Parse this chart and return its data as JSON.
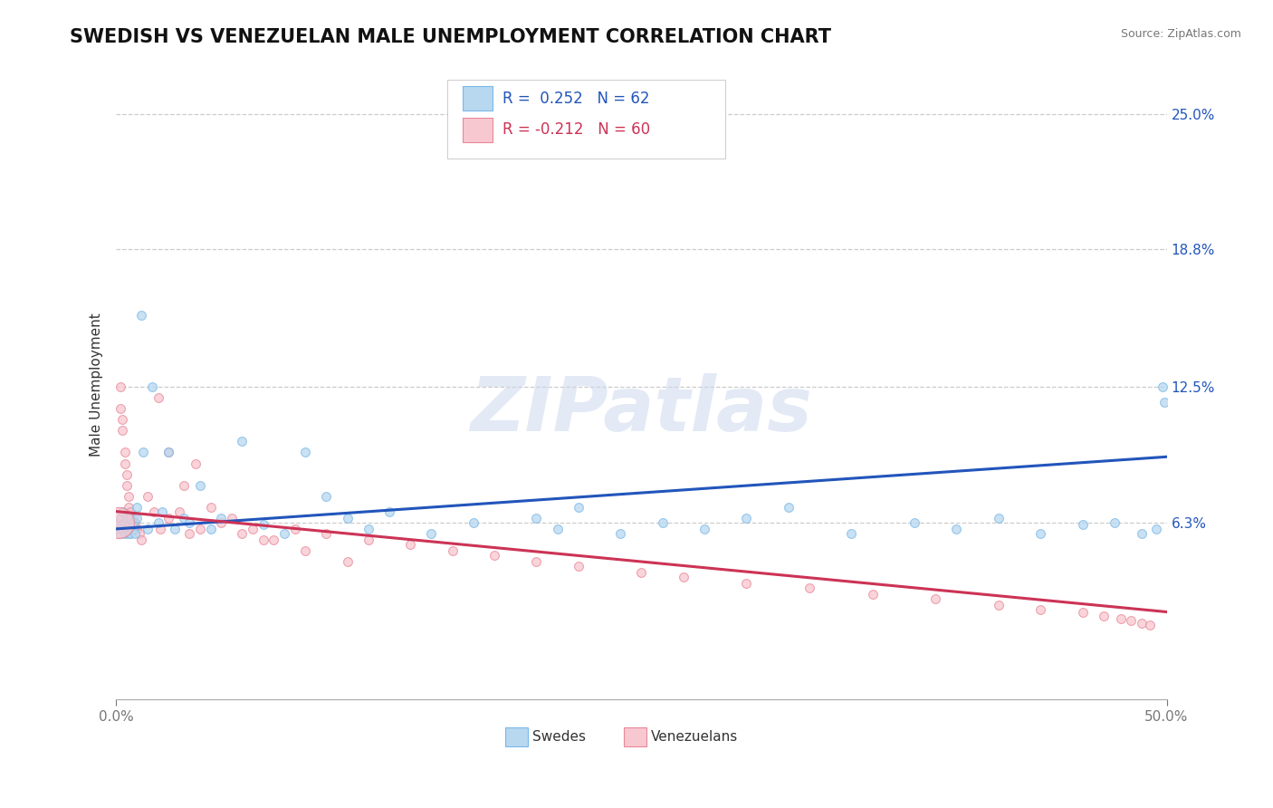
{
  "title": "SWEDISH VS VENEZUELAN MALE UNEMPLOYMENT CORRELATION CHART",
  "source": "Source: ZipAtlas.com",
  "ylabel": "Male Unemployment",
  "yticks": [
    0.0,
    0.063,
    0.125,
    0.188,
    0.25
  ],
  "ytick_labels": [
    "",
    "6.3%",
    "12.5%",
    "18.8%",
    "25.0%"
  ],
  "xmin": 0.0,
  "xmax": 0.5,
  "ymin": -0.018,
  "ymax": 0.27,
  "blue_color": "#7ab8e8",
  "pink_color": "#e88898",
  "blue_line_color": "#2255bb",
  "pink_line_color": "#cc3355",
  "blue_fill": "#b8d8f0",
  "pink_fill": "#f8c8d0",
  "watermark": "ZIPatlas",
  "title_fontsize": 15,
  "axis_label_fontsize": 11,
  "tick_fontsize": 11,
  "sweden_x": [
    0.001,
    0.001,
    0.002,
    0.002,
    0.003,
    0.003,
    0.003,
    0.004,
    0.004,
    0.005,
    0.005,
    0.006,
    0.006,
    0.007,
    0.007,
    0.008,
    0.008,
    0.009,
    0.01,
    0.01,
    0.012,
    0.013,
    0.015,
    0.017,
    0.02,
    0.022,
    0.025,
    0.028,
    0.032,
    0.035,
    0.04,
    0.045,
    0.05,
    0.06,
    0.07,
    0.08,
    0.09,
    0.1,
    0.11,
    0.12,
    0.13,
    0.15,
    0.17,
    0.2,
    0.21,
    0.22,
    0.24,
    0.26,
    0.28,
    0.3,
    0.32,
    0.35,
    0.38,
    0.4,
    0.42,
    0.44,
    0.46,
    0.475,
    0.488,
    0.495,
    0.498,
    0.499
  ],
  "sweden_y": [
    0.06,
    0.063,
    0.058,
    0.065,
    0.06,
    0.062,
    0.068,
    0.058,
    0.063,
    0.06,
    0.065,
    0.058,
    0.062,
    0.065,
    0.058,
    0.06,
    0.063,
    0.058,
    0.07,
    0.065,
    0.158,
    0.095,
    0.06,
    0.125,
    0.063,
    0.068,
    0.095,
    0.06,
    0.065,
    0.063,
    0.08,
    0.06,
    0.065,
    0.1,
    0.062,
    0.058,
    0.095,
    0.075,
    0.065,
    0.06,
    0.068,
    0.058,
    0.063,
    0.065,
    0.06,
    0.07,
    0.058,
    0.063,
    0.06,
    0.065,
    0.07,
    0.058,
    0.063,
    0.06,
    0.065,
    0.058,
    0.062,
    0.063,
    0.058,
    0.06,
    0.125,
    0.118
  ],
  "sweden_sizes": [
    50,
    50,
    50,
    50,
    50,
    50,
    50,
    50,
    50,
    50,
    50,
    50,
    50,
    50,
    50,
    50,
    50,
    50,
    50,
    50,
    50,
    50,
    50,
    50,
    50,
    50,
    50,
    50,
    50,
    50,
    50,
    50,
    50,
    50,
    50,
    50,
    50,
    50,
    50,
    50,
    50,
    50,
    50,
    50,
    50,
    50,
    50,
    50,
    50,
    50,
    50,
    50,
    50,
    50,
    50,
    50,
    50,
    50,
    50,
    50,
    50,
    50
  ],
  "venezuela_x": [
    0.001,
    0.001,
    0.002,
    0.002,
    0.003,
    0.003,
    0.004,
    0.004,
    0.005,
    0.005,
    0.006,
    0.006,
    0.007,
    0.008,
    0.009,
    0.01,
    0.011,
    0.012,
    0.015,
    0.018,
    0.021,
    0.025,
    0.03,
    0.035,
    0.04,
    0.05,
    0.06,
    0.07,
    0.085,
    0.1,
    0.12,
    0.14,
    0.16,
    0.18,
    0.2,
    0.22,
    0.25,
    0.27,
    0.3,
    0.33,
    0.36,
    0.39,
    0.42,
    0.44,
    0.46,
    0.47,
    0.478,
    0.483,
    0.488,
    0.492,
    0.02,
    0.025,
    0.032,
    0.038,
    0.045,
    0.055,
    0.065,
    0.075,
    0.09,
    0.11
  ],
  "venezuela_y": [
    0.06,
    0.063,
    0.125,
    0.115,
    0.11,
    0.105,
    0.095,
    0.09,
    0.085,
    0.08,
    0.075,
    0.07,
    0.068,
    0.065,
    0.063,
    0.06,
    0.058,
    0.055,
    0.075,
    0.068,
    0.06,
    0.065,
    0.068,
    0.058,
    0.06,
    0.063,
    0.058,
    0.055,
    0.06,
    0.058,
    0.055,
    0.053,
    0.05,
    0.048,
    0.045,
    0.043,
    0.04,
    0.038,
    0.035,
    0.033,
    0.03,
    0.028,
    0.025,
    0.023,
    0.022,
    0.02,
    0.019,
    0.018,
    0.017,
    0.016,
    0.12,
    0.095,
    0.08,
    0.09,
    0.07,
    0.065,
    0.06,
    0.055,
    0.05,
    0.045
  ],
  "venezuela_sizes": [
    50,
    50,
    50,
    50,
    50,
    50,
    50,
    50,
    50,
    50,
    50,
    50,
    50,
    50,
    50,
    50,
    50,
    50,
    50,
    50,
    50,
    50,
    50,
    50,
    50,
    50,
    50,
    50,
    50,
    50,
    50,
    50,
    50,
    50,
    50,
    50,
    50,
    50,
    50,
    50,
    50,
    50,
    50,
    50,
    50,
    50,
    50,
    50,
    50,
    50,
    50,
    50,
    50,
    50,
    50,
    50,
    50,
    50,
    50,
    50
  ],
  "venezuela_large_x": [
    0.001
  ],
  "venezuela_large_y": [
    0.063
  ],
  "venezuela_large_size": [
    600
  ]
}
